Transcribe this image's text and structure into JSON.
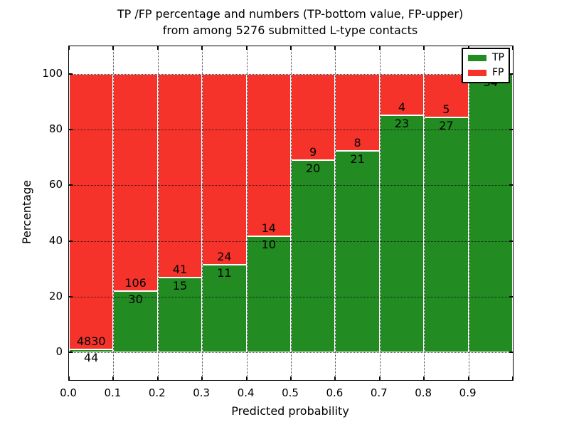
{
  "title": {
    "line1": "TP /FP percentage and numbers (TP-bottom value, FP-upper)",
    "line2": "from among 5276 submitted L-type contacts"
  },
  "axes": {
    "xlabel": "Predicted probability",
    "ylabel": "Percentage",
    "xtick_labels": [
      "0.0",
      "0.1",
      "0.2",
      "0.3",
      "0.4",
      "0.5",
      "0.6",
      "0.7",
      "0.8",
      "0.9"
    ],
    "ytick_values": [
      0,
      20,
      40,
      60,
      80,
      100
    ],
    "ytick_labels": [
      "0",
      "20",
      "40",
      "60",
      "80",
      "100"
    ],
    "xlim": [
      0.0,
      1.0
    ],
    "ylim": [
      -10,
      110
    ],
    "grid": "dotted"
  },
  "legend": {
    "position": "upper right",
    "items": [
      {
        "label": "TP",
        "color_key": "tp"
      },
      {
        "label": "FP",
        "color_key": "fp"
      }
    ]
  },
  "colors": {
    "tp": "#228b22",
    "fp": "#f5332b",
    "bar_edge": "#ffffff",
    "spine": "#000000",
    "background": "#ffffff"
  },
  "chart_data": {
    "type": "bar",
    "stacked": true,
    "normalized_to": 100,
    "title": "TP /FP percentage and numbers (TP-bottom value, FP-upper) from among 5276 submitted L-type contacts",
    "xlabel": "Predicted probability",
    "ylabel": "Percentage",
    "total_contacts": 5276,
    "bin_width": 0.1,
    "series_names": [
      "TP",
      "FP"
    ],
    "bins": [
      {
        "x0": 0.0,
        "x1": 0.1,
        "tp": 44,
        "fp": 4830,
        "tp_pct": 0.9,
        "fp_label_visible": true
      },
      {
        "x0": 0.1,
        "x1": 0.2,
        "tp": 30,
        "fp": 106,
        "tp_pct": 22.1,
        "fp_label_visible": true
      },
      {
        "x0": 0.2,
        "x1": 0.3,
        "tp": 15,
        "fp": 41,
        "tp_pct": 26.8,
        "fp_label_visible": true
      },
      {
        "x0": 0.3,
        "x1": 0.4,
        "tp": 11,
        "fp": 24,
        "tp_pct": 31.4,
        "fp_label_visible": true
      },
      {
        "x0": 0.4,
        "x1": 0.5,
        "tp": 10,
        "fp": 14,
        "tp_pct": 41.7,
        "fp_label_visible": true
      },
      {
        "x0": 0.5,
        "x1": 0.6,
        "tp": 20,
        "fp": 9,
        "tp_pct": 69.0,
        "fp_label_visible": true
      },
      {
        "x0": 0.6,
        "x1": 0.7,
        "tp": 21,
        "fp": 8,
        "tp_pct": 72.4,
        "fp_label_visible": true
      },
      {
        "x0": 0.7,
        "x1": 0.8,
        "tp": 23,
        "fp": 4,
        "tp_pct": 85.2,
        "fp_label_visible": true
      },
      {
        "x0": 0.8,
        "x1": 0.9,
        "tp": 27,
        "fp": 5,
        "tp_pct": 84.4,
        "fp_label_visible": true
      },
      {
        "x0": 0.9,
        "x1": 1.0,
        "tp": 34,
        "fp": 0,
        "tp_pct": 100.0,
        "fp_label_visible": false
      }
    ]
  }
}
